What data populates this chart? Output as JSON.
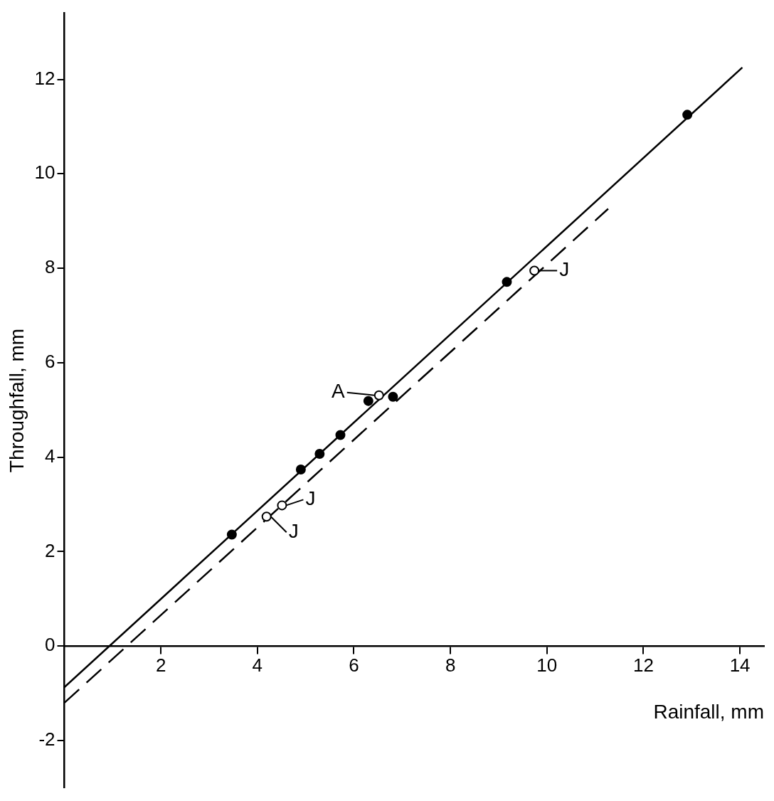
{
  "chart_data": {
    "type": "scatter",
    "xlabel": "Rainfall, mm",
    "ylabel": "Throughfall, mm",
    "xlim": [
      0,
      14.5
    ],
    "ylim": [
      -3,
      13.4
    ],
    "xticks": [
      2,
      4,
      6,
      8,
      10,
      12,
      14
    ],
    "yticks": [
      -2,
      0,
      2,
      4,
      6,
      8,
      10,
      12
    ],
    "grid": false,
    "legend": false,
    "marker": "circle",
    "series": [
      {
        "color": "#000000",
        "x": [
          3.47,
          4.9,
          5.29,
          5.72,
          6.3,
          6.81,
          9.17,
          12.91
        ],
        "values": [
          2.36,
          3.74,
          4.07,
          4.47,
          5.19,
          5.28,
          7.71,
          11.25
        ]
      },
      {
        "color": "#ffffff",
        "x": [
          4.19,
          4.51,
          6.52,
          9.74
        ],
        "values": [
          2.74,
          2.98,
          5.31,
          7.95
        ]
      },
      {
        "type": "line",
        "marker": "none",
        "color": "#000000",
        "line_style": "solid",
        "x": [
          0,
          14.05
        ],
        "values": [
          -0.87,
          12.25
        ]
      },
      {
        "type": "line",
        "marker": "none",
        "color": "#000000",
        "line_style": "dashed",
        "x": [
          0,
          11.27
        ],
        "values": [
          -1.2,
          9.26
        ]
      }
    ],
    "annotations": [
      {
        "text": "J",
        "x": 4.19,
        "y": 2.74
      },
      {
        "text": "J",
        "x": 4.51,
        "y": 2.98
      },
      {
        "text": "A",
        "x": 6.52,
        "y": 5.31
      },
      {
        "text": "J",
        "x": 9.74,
        "y": 7.95
      }
    ]
  }
}
